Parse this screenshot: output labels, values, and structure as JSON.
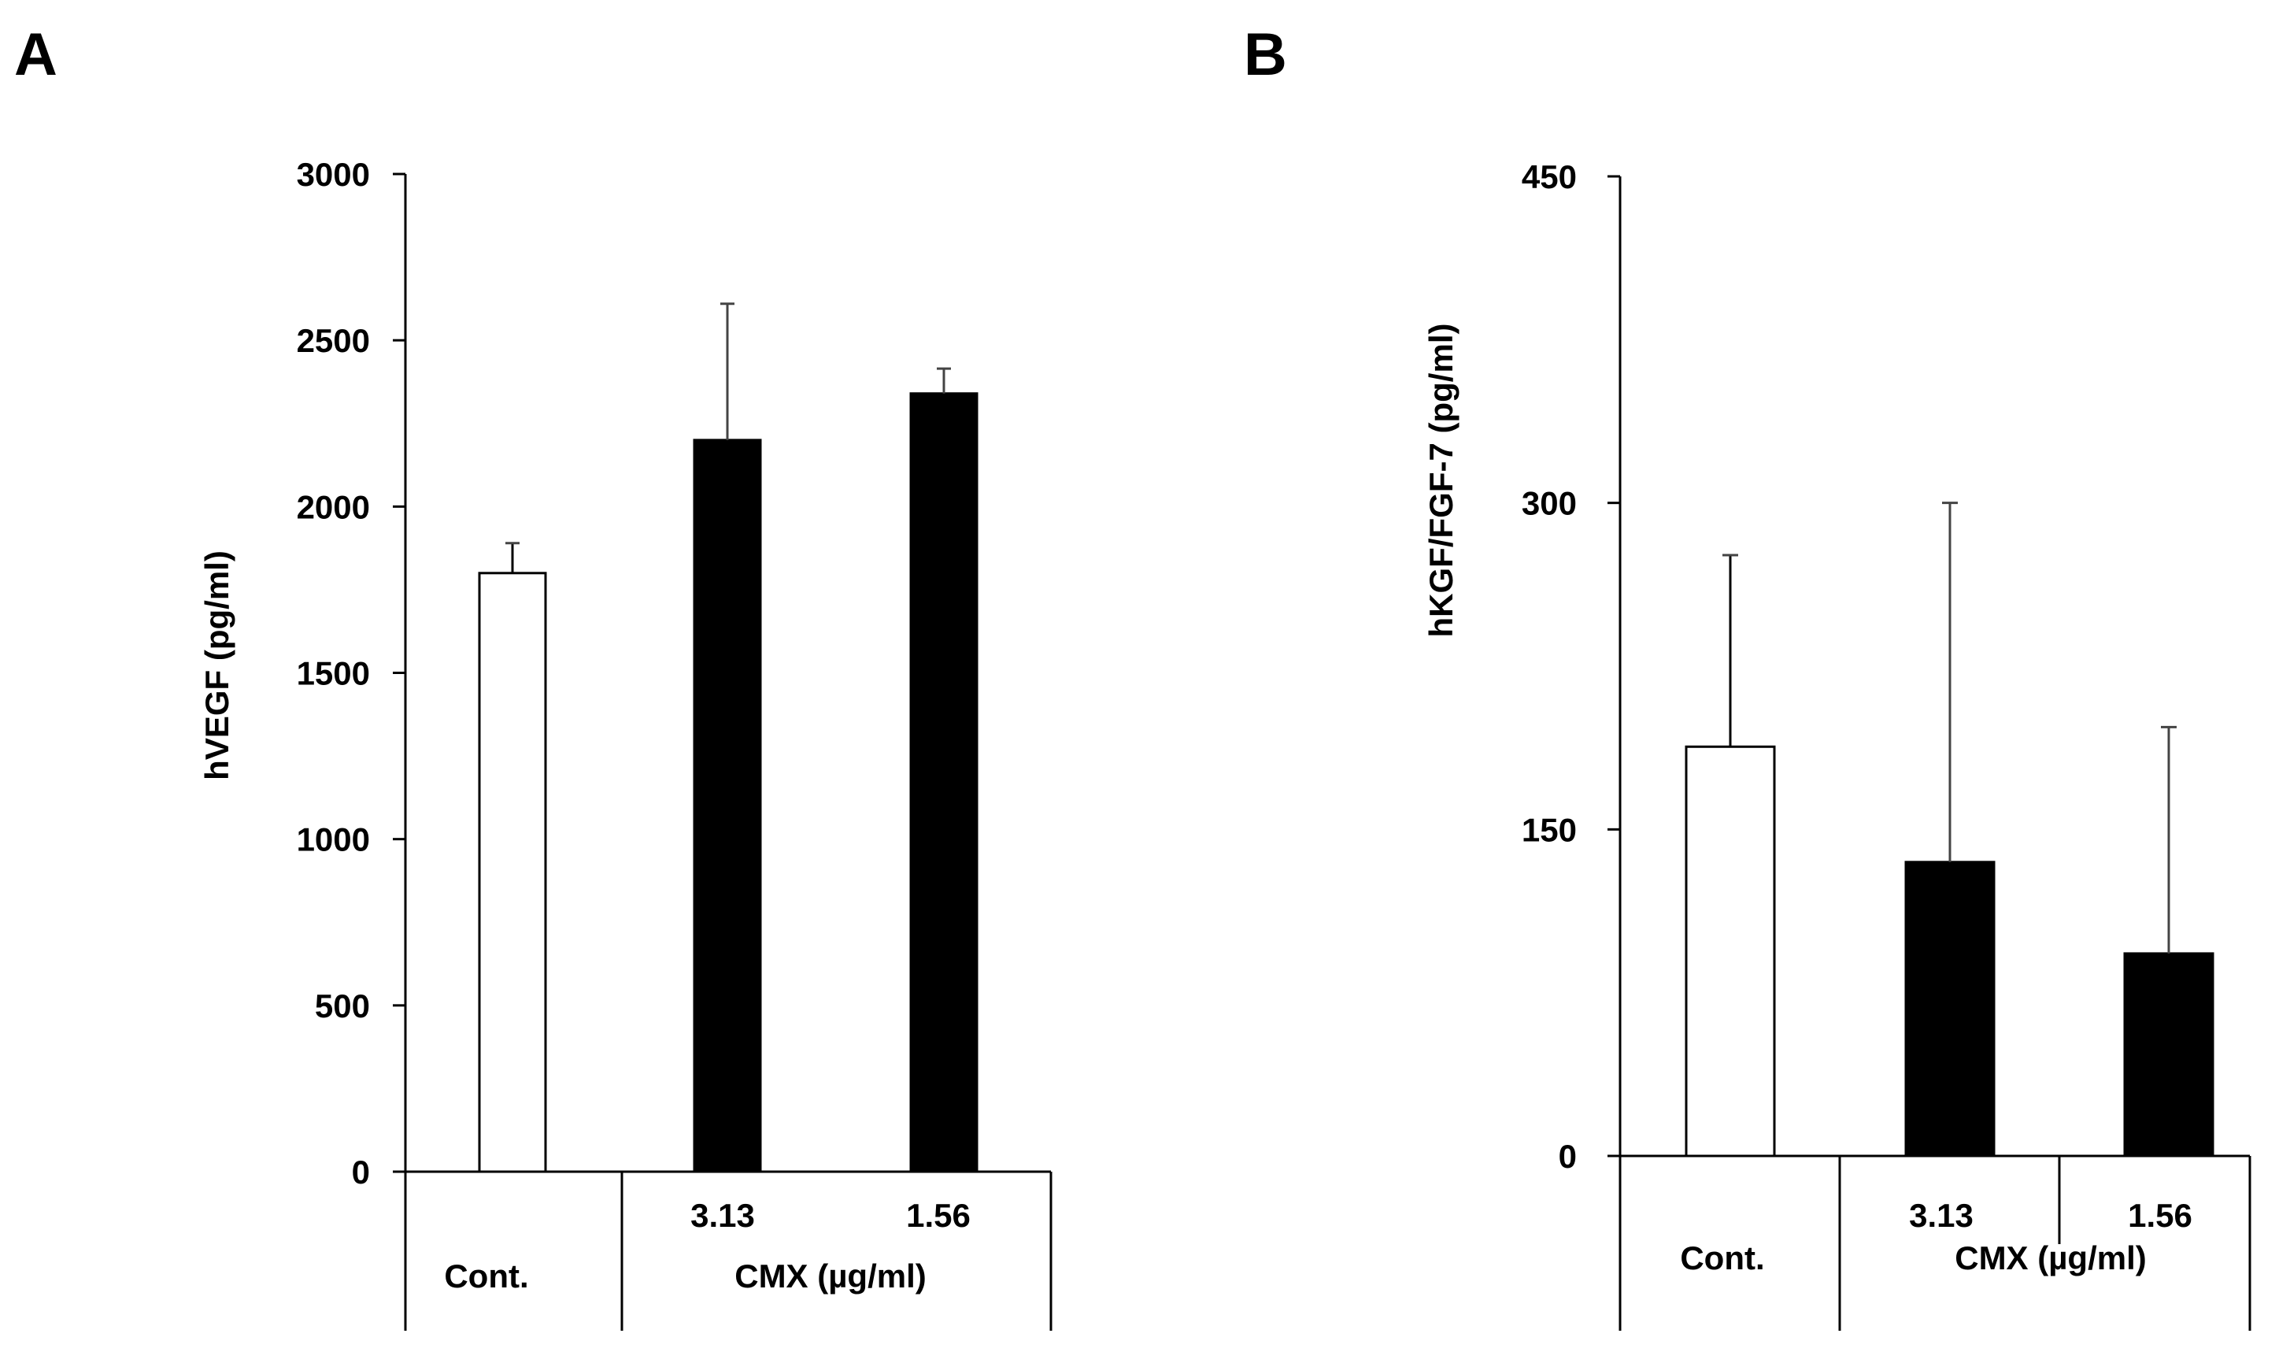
{
  "chart_data": [
    {
      "panel": "A",
      "type": "bar",
      "ylabel": "hVEGF (pg/ml)",
      "ylim": [
        0,
        3000
      ],
      "yticks": [
        0,
        500,
        1000,
        1500,
        2000,
        2500,
        3000
      ],
      "categories": [
        "Cont.",
        "3.13",
        "1.56"
      ],
      "group_label": "CMX (µg/ml)",
      "control_label": "Cont.",
      "values": [
        1800,
        2200,
        2340
      ],
      "errors": [
        90,
        410,
        75
      ],
      "bar_colors": [
        "#ffffff",
        "#000000",
        "#000000"
      ]
    },
    {
      "panel": "B",
      "type": "bar",
      "ylabel": "hKGF/FGF-7 (pg/ml)",
      "ylim": [
        0,
        450
      ],
      "yticks": [
        0,
        150,
        300,
        450
      ],
      "categories": [
        "Cont.",
        "3.13",
        "1.56"
      ],
      "group_label": "CMX (µg/ml)",
      "control_label": "Cont.",
      "values": [
        188,
        135,
        93
      ],
      "errors": [
        88,
        165,
        104
      ],
      "bar_colors": [
        "#ffffff",
        "#000000",
        "#000000"
      ]
    }
  ]
}
